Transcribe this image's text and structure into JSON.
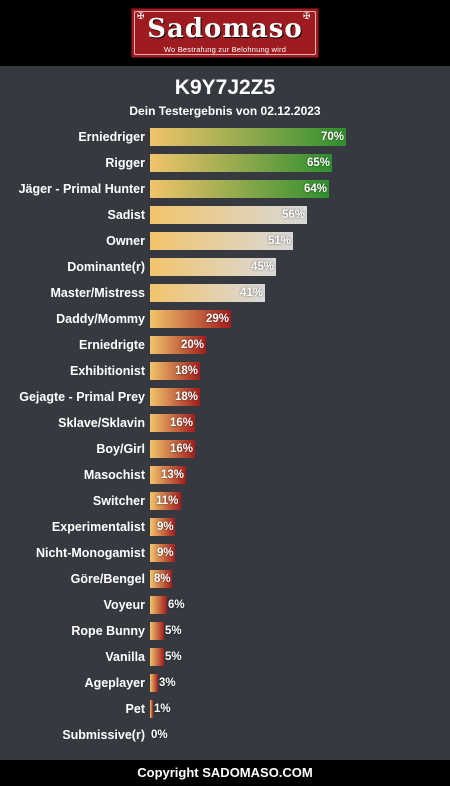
{
  "header": {
    "logo_text": "Sadomaso",
    "logo_tagline": "Wo Bestrafung zur Belohnung wird"
  },
  "title": "K9Y7J2Z5",
  "subtitle": "Dein Testergebnis von 02.12.2023",
  "colors": {
    "background": "#363a40",
    "header": "#000000",
    "logo_red": "#9e1b1f",
    "bar_high_end": "#2e8f2e",
    "bar_mid_end": "#d9d9d9",
    "bar_low_end": "#a21d1d",
    "bar_start": "#f2c46b"
  },
  "chart_data": {
    "type": "bar",
    "orientation": "horizontal",
    "unit": "%",
    "xlim": [
      0,
      100
    ],
    "categories": [
      "Erniedriger",
      "Rigger",
      "Jäger - Primal Hunter",
      "Sadist",
      "Owner",
      "Dominante(r)",
      "Master/Mistress",
      "Daddy/Mommy",
      "Erniedrigte",
      "Exhibitionist",
      "Gejagte - Primal Prey",
      "Sklave/Sklavin",
      "Boy/Girl",
      "Masochist",
      "Switcher",
      "Experimentalist",
      "Nicht-Monogamist",
      "Göre/Bengel",
      "Voyeur",
      "Rope Bunny",
      "Vanilla",
      "Ageplayer",
      "Pet",
      "Submissive(r)"
    ],
    "values": [
      70,
      65,
      64,
      56,
      51,
      45,
      41,
      29,
      20,
      18,
      18,
      16,
      16,
      13,
      11,
      9,
      9,
      8,
      6,
      5,
      5,
      3,
      1,
      0
    ],
    "value_labels": [
      "70%",
      "65%",
      "64%",
      "56%",
      "51%",
      "45%",
      "41%",
      "29%",
      "20%",
      "18%",
      "18%",
      "16%",
      "16%",
      "13%",
      "11%",
      "9%",
      "9%",
      "8%",
      "6%",
      "5%",
      "5%",
      "3%",
      "1%",
      "0%"
    ]
  },
  "footer": {
    "copyright": "Copyright SADOMASO.COM"
  }
}
